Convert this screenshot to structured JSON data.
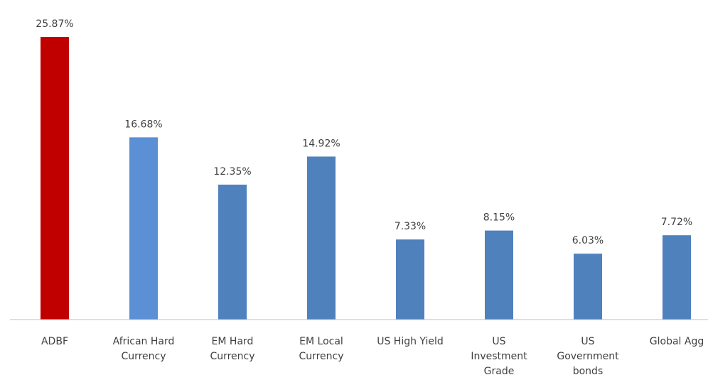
{
  "chart_data": {
    "type": "bar",
    "categories": [
      [
        "ADBF"
      ],
      [
        "African Hard",
        "Currency"
      ],
      [
        "EM Hard",
        "Currency"
      ],
      [
        "EM Local",
        "Currency"
      ],
      [
        "US High Yield"
      ],
      [
        "US",
        "Investment",
        "Grade"
      ],
      [
        "US",
        "Government",
        "bonds"
      ],
      [
        "Global Agg"
      ]
    ],
    "values": [
      25.87,
      16.68,
      12.35,
      14.92,
      7.33,
      8.15,
      6.03,
      7.72
    ],
    "value_labels": [
      "25.87%",
      "16.68%",
      "12.35%",
      "14.92%",
      "7.33%",
      "8.15%",
      "6.03%",
      "7.72%"
    ],
    "bar_colors": [
      "#c00000",
      "#5b8fd6",
      "#4f81bd",
      "#4f81bd",
      "#4f81bd",
      "#4f81bd",
      "#4f81bd",
      "#4f81bd"
    ],
    "axis_color": "#bfbfbf",
    "label_color": "#404040",
    "ylim": [
      0,
      25.87
    ],
    "grid": false,
    "legend": "none",
    "title": "",
    "xlabel": "",
    "ylabel": ""
  }
}
